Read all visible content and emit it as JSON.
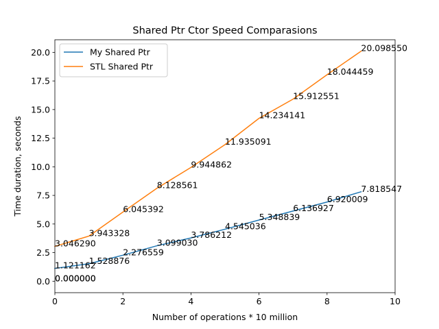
{
  "chart_data": {
    "type": "line",
    "title": "Shared Ptr Ctor Speed Comparasions",
    "xlabel": "Number of operations * 10 million",
    "ylabel": "Time duration, seconds",
    "xlim": [
      0,
      10
    ],
    "ylim": [
      -1.0,
      21.1
    ],
    "xticks": [
      0,
      2,
      4,
      6,
      8,
      10
    ],
    "xtick_labels": [
      "0",
      "2",
      "4",
      "6",
      "8",
      "10"
    ],
    "yticks": [
      0.0,
      2.5,
      5.0,
      7.5,
      10.0,
      12.5,
      15.0,
      17.5,
      20.0
    ],
    "ytick_labels": [
      "0.0",
      "2.5",
      "5.0",
      "7.5",
      "10.0",
      "12.5",
      "15.0",
      "17.5",
      "20.0"
    ],
    "grid": false,
    "legend": {
      "placement": "top-left",
      "entries": [
        "My Shared Ptr",
        "STL Shared Ptr"
      ]
    },
    "series": [
      {
        "name": "My Shared Ptr",
        "color": "#1f77b4",
        "x": [
          0,
          1,
          2,
          3,
          4,
          5,
          6,
          7,
          8,
          9
        ],
        "values": [
          1.121162,
          1.528876,
          2.276559,
          3.09903,
          3.786212,
          4.545036,
          5.348839,
          6.136927,
          6.920009,
          7.818547
        ],
        "labels": [
          "1.121162",
          "1.528876",
          "2.276559",
          "3.099030",
          "3.786212",
          "4.545036",
          "5.348839",
          "6.136927",
          "6.920009",
          "7.818547"
        ]
      },
      {
        "name": "STL Shared Ptr",
        "color": "#ff7f0e",
        "x": [
          0,
          1,
          2,
          3,
          4,
          5,
          6,
          7,
          8,
          9
        ],
        "values": [
          3.04629,
          3.943328,
          6.045392,
          8.128561,
          9.944862,
          11.935091,
          14.234141,
          15.912551,
          18.044459,
          20.09855
        ],
        "labels": [
          "3.046290",
          "3.943328",
          "6.045392",
          "8.128561",
          "9.944862",
          "11.935091",
          "14.234141",
          "15.912551",
          "18.044459",
          "20.098550"
        ]
      }
    ],
    "annotations": [
      {
        "x": 0,
        "y": 0.0,
        "text": "0.000000"
      },
      {
        "x": 0,
        "y": 0.0,
        "text": "0.000000"
      }
    ]
  }
}
